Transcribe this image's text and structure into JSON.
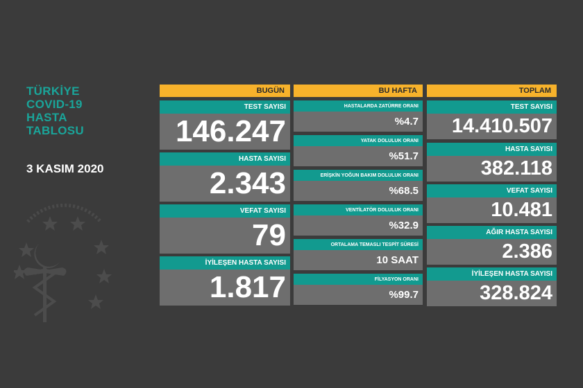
{
  "title_lines": [
    "TÜRKİYE",
    "COVID-19",
    "HASTA",
    "TABLOSU"
  ],
  "date": "3 KASIM 2020",
  "colors": {
    "background": "#3b3b3b",
    "teal": "#129a8f",
    "header": "#f7b22b",
    "value_bg": "#6e6e6e"
  },
  "today": {
    "header": "BUGÜN",
    "items": [
      {
        "label": "TEST SAYISI",
        "value": "146.247"
      },
      {
        "label": "HASTA SAYISI",
        "value": "2.343"
      },
      {
        "label": "VEFAT SAYISI",
        "value": "79"
      },
      {
        "label": "İYİLEŞEN HASTA SAYISI",
        "value": "1.817"
      }
    ]
  },
  "week": {
    "header": "BU HAFTA",
    "items": [
      {
        "label": "HASTALARDA ZATÜRRE ORANI",
        "value": "%4.7"
      },
      {
        "label": "YATAK DOLULUK ORANI",
        "value": "%51.7"
      },
      {
        "label": "ERİŞKİN YOĞUN BAKIM DOLULUK ORANI",
        "value": "%68.5"
      },
      {
        "label": "VENTİLATÖR DOLULUK ORANI",
        "value": "%32.9"
      },
      {
        "label": "ORTALAMA TEMASLI TESPİT SÜRESİ",
        "value": "10 SAAT"
      },
      {
        "label": "FİLYASYON ORANI",
        "value": "%99.7"
      }
    ]
  },
  "total": {
    "header": "TOPLAM",
    "items": [
      {
        "label": "TEST SAYISI",
        "value": "14.410.507"
      },
      {
        "label": "HASTA SAYISI",
        "value": "382.118"
      },
      {
        "label": "VEFAT SAYISI",
        "value": "10.481"
      },
      {
        "label": "AĞIR HASTA SAYISI",
        "value": "2.386"
      },
      {
        "label": "İYİLEŞEN HASTA SAYISI",
        "value": "328.824"
      }
    ]
  }
}
